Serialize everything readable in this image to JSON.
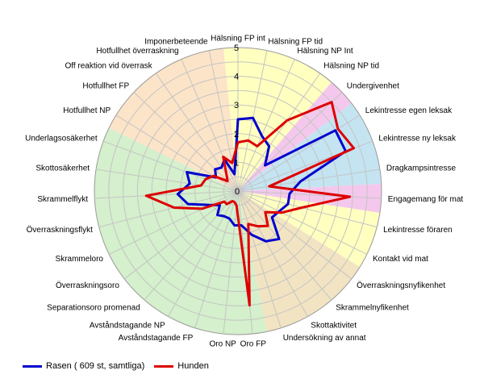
{
  "chart_data": {
    "type": "radar",
    "title": "",
    "rlim": [
      0,
      5
    ],
    "rticks": [
      "1",
      "2",
      "3",
      "4",
      "5"
    ],
    "grid": true,
    "legend_position": "bottom-left",
    "categories": [
      "Hälsning FP int",
      "Hälsning FP tid",
      "Hälsning NP Int",
      "Hälsning NP tid",
      "Undergivenhet",
      "Lekintresse egen leksak",
      "Lekintresse ny leksak",
      "Dragkampsintresse",
      "Engagemang för mat",
      "Lekintresse föraren",
      "Kontakt vid mat",
      "Överraskningsnyfikenhet",
      "Skrammelnyfikenhet",
      "Skottaktivitet",
      "Undersökning av annat",
      "Oro FP",
      "Oro NP",
      "Avståndstagande FP",
      "Avståndstagande NP",
      "Separationsoro promenad",
      "Överraskningsoro",
      "Skrammeloro",
      "Överraskningsflykt",
      "Skrammelflykt",
      "Skottosäkerhet",
      "Underlagsosäkerhet",
      "Hotfullhet NP",
      "Hotfullhet FP",
      "Off reaktion vid överrask",
      "Hotfullhet överraskning",
      "Imponerbeteende"
    ],
    "sectors": [
      {
        "from": 0,
        "to": 4,
        "color": "#ffffc0"
      },
      {
        "from": 4,
        "to": 5,
        "color": "#f4c8ec"
      },
      {
        "from": 5,
        "to": 8,
        "color": "#c4e4f2"
      },
      {
        "from": 8,
        "to": 9,
        "color": "#f4c8ec"
      },
      {
        "from": 9,
        "to": 11,
        "color": "#ffffc0"
      },
      {
        "from": 11,
        "to": 15,
        "color": "#f2e4c2"
      },
      {
        "from": 15,
        "to": 26,
        "color": "#d4f0cc"
      },
      {
        "from": 26,
        "to": 31,
        "color": "#fce4c8"
      }
    ],
    "series": [
      {
        "name": "Rasen ( 609 st, samtliga)",
        "color": "#0000cc",
        "values": [
          2.5,
          2.6,
          2.1,
          1.9,
          1.3,
          4.0,
          4.0,
          2.2,
          1.8,
          1.8,
          1.6,
          1.5,
          2.2,
          2.0,
          1.6,
          1.2,
          1.2,
          1.0,
          1.0,
          1.1,
          0.8,
          1.1,
          1.8,
          2.1,
          1.7,
          1.9,
          0.9,
          1.1,
          1.0,
          1.2,
          0.6
        ]
      },
      {
        "name": "Hunden",
        "color": "#dd0000",
        "values": [
          1.7,
          1.8,
          1.7,
          3.0,
          4.5,
          4.1,
          4.3,
          1.1,
          3.9,
          2.3,
          1.7,
          1.2,
          1.6,
          1.4,
          1.2,
          4.0,
          0.5,
          0.4,
          0.4,
          0.6,
          0.6,
          1.4,
          2.3,
          3.2,
          1.3,
          1.2,
          1.0,
          0.5,
          0.7,
          1.3,
          1.0
        ]
      }
    ]
  }
}
